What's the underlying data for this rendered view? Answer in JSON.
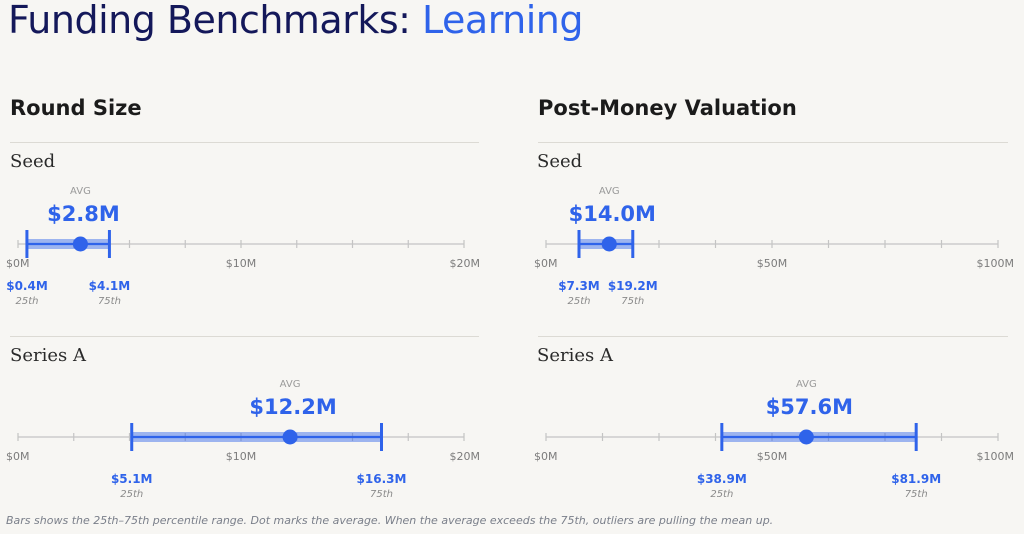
{
  "header": {
    "title_main": "Funding Benchmarks:",
    "title_accent": "Learning"
  },
  "columns": [
    {
      "title": "Round Size"
    },
    {
      "title": "Post-Money Valuation"
    }
  ],
  "footnote": "Bars shows the 25th–75th percentile range. Dot marks the average. When the average exceeds the 75th, outliers are pulling the mean up.",
  "colors": {
    "accent": "#2f63ea",
    "navy": "#14185a",
    "axis": "#c4c4c4",
    "tick_label": "#7c7c7c",
    "avg_label": "#9a9a9a",
    "pct_label": "#8a8a8a",
    "background": "#f7f6f3"
  },
  "chart_data": [
    {
      "type": "range-dot",
      "column": "Round Size",
      "row": "Seed",
      "xlim": [
        0,
        20
      ],
      "ticks": [
        0,
        2.5,
        5,
        7.5,
        10,
        12.5,
        15,
        17.5,
        20
      ],
      "tick_labels": {
        "0": "$0M",
        "10": "$10M",
        "20": "$20M"
      },
      "p25": 0.4,
      "p75": 4.1,
      "avg": 2.8,
      "p25_label": "$0.4M",
      "p75_label": "$4.1M",
      "avg_label": "$2.8M",
      "avg_caption": "AVG",
      "p25_caption": "25th",
      "p75_caption": "75th"
    },
    {
      "type": "range-dot",
      "column": "Round Size",
      "row": "Series A",
      "xlim": [
        0,
        20
      ],
      "ticks": [
        0,
        2.5,
        5,
        7.5,
        10,
        12.5,
        15,
        17.5,
        20
      ],
      "tick_labels": {
        "0": "$0M",
        "10": "$10M",
        "20": "$20M"
      },
      "p25": 5.1,
      "p75": 16.3,
      "avg": 12.2,
      "p25_label": "$5.1M",
      "p75_label": "$16.3M",
      "avg_label": "$12.2M",
      "avg_caption": "AVG",
      "p25_caption": "25th",
      "p75_caption": "75th"
    },
    {
      "type": "range-dot",
      "column": "Post-Money Valuation",
      "row": "Seed",
      "xlim": [
        0,
        100
      ],
      "ticks": [
        0,
        12.5,
        25,
        37.5,
        50,
        62.5,
        75,
        87.5,
        100
      ],
      "tick_labels": {
        "0": "$0M",
        "50": "$50M",
        "100": "$100M"
      },
      "p25": 7.3,
      "p75": 19.2,
      "avg": 14.0,
      "p25_label": "$7.3M",
      "p75_label": "$19.2M",
      "avg_label": "$14.0M",
      "avg_caption": "AVG",
      "p25_caption": "25th",
      "p75_caption": "75th"
    },
    {
      "type": "range-dot",
      "column": "Post-Money Valuation",
      "row": "Series A",
      "xlim": [
        0,
        100
      ],
      "ticks": [
        0,
        12.5,
        25,
        37.5,
        50,
        62.5,
        75,
        87.5,
        100
      ],
      "tick_labels": {
        "0": "$0M",
        "50": "$50M",
        "100": "$100M"
      },
      "p25": 38.9,
      "p75": 81.9,
      "avg": 57.6,
      "p25_label": "$38.9M",
      "p75_label": "$81.9M",
      "avg_label": "$57.6M",
      "avg_caption": "AVG",
      "p25_caption": "25th",
      "p75_caption": "75th"
    }
  ]
}
